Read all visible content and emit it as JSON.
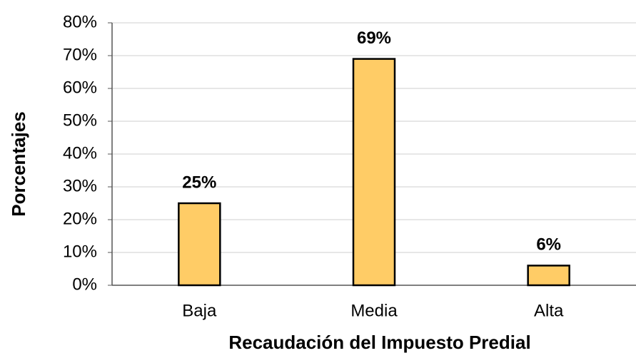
{
  "chart_data": {
    "type": "bar",
    "x_label": "Recaudación del Impuesto Predial",
    "y_label": "Porcentajes",
    "categories": [
      "Baja",
      "Media",
      "Alta"
    ],
    "values": [
      25,
      69,
      6
    ],
    "value_labels": [
      "25%",
      "69%",
      "6%"
    ],
    "color": "#ffcc66",
    "ylim": [
      0,
      80
    ],
    "yticks": [
      {
        "value": 0,
        "label": "0%"
      },
      {
        "value": 10,
        "label": "10%"
      },
      {
        "value": 20,
        "label": "20%"
      },
      {
        "value": 30,
        "label": "30%"
      },
      {
        "value": 40,
        "label": "40%"
      },
      {
        "value": 50,
        "label": "50%"
      },
      {
        "value": 60,
        "label": "60%"
      },
      {
        "value": 70,
        "label": "70%"
      },
      {
        "value": 80,
        "label": "80%"
      }
    ],
    "grid": true
  }
}
